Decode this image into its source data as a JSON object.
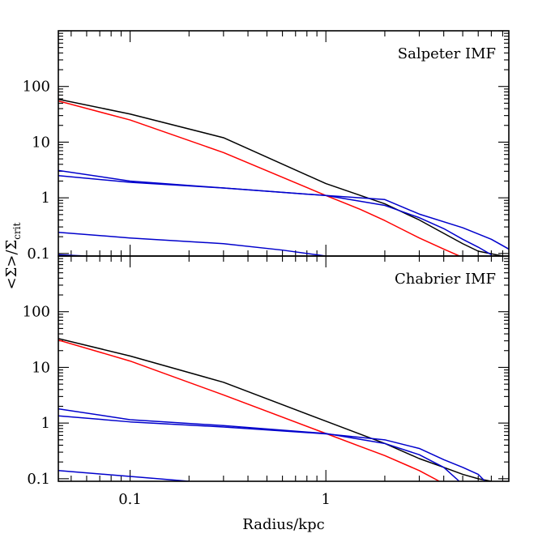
{
  "chart_data": {
    "type": "line",
    "xlabel": "Radius/kpc",
    "ylabel": "<Σ>/Σ",
    "ylabel_sub": "crit",
    "xscale": "log",
    "yscale": "log",
    "xlim": [
      0.043,
      8.6
    ],
    "x_ticks": [
      {
        "value": 0.1,
        "label": "0.1"
      },
      {
        "value": 1,
        "label": "1"
      }
    ],
    "y_ticks": [
      {
        "value": 0.1,
        "label": "0.1"
      },
      {
        "value": 1,
        "label": "1"
      },
      {
        "value": 10,
        "label": "10"
      },
      {
        "value": 100,
        "label": "100"
      }
    ],
    "colors": {
      "total": "#000000",
      "model": "#ff0000",
      "components": "#0000cc"
    },
    "panels": [
      {
        "label": "Salpeter IMF",
        "ylim": [
          0.09,
          1000
        ],
        "series": [
          {
            "color": "#000000",
            "x": [
              0.043,
              0.1,
              0.3,
              1,
              2,
              3,
              4,
              5,
              6,
              8
            ],
            "y": [
              59,
              32,
              12,
              1.8,
              0.78,
              0.4,
              0.23,
              0.15,
              0.11,
              0.09
            ]
          },
          {
            "color": "#ff0000",
            "x": [
              0.043,
              0.1,
              0.3,
              1,
              1.5,
              2,
              3,
              4,
              5
            ],
            "y": [
              55,
              25,
              6.5,
              1.1,
              0.62,
              0.39,
              0.19,
              0.12,
              0.085
            ]
          },
          {
            "color": "#0000cc",
            "x": [
              0.043,
              0.1,
              0.3,
              1,
              2,
              3,
              4,
              5,
              6,
              7
            ],
            "y": [
              3.1,
              2.0,
              1.5,
              1.1,
              0.73,
              0.44,
              0.28,
              0.18,
              0.13,
              0.095
            ]
          },
          {
            "color": "#0000cc",
            "x": [
              0.043,
              0.1,
              0.3,
              1,
              2,
              3,
              5,
              7,
              8.6
            ],
            "y": [
              2.5,
              1.9,
              1.5,
              1.1,
              0.93,
              0.51,
              0.29,
              0.18,
              0.12
            ]
          },
          {
            "color": "#0000cc",
            "x": [
              0.043,
              0.1,
              0.3,
              0.6,
              1.0
            ],
            "y": [
              0.24,
              0.19,
              0.15,
              0.115,
              0.09
            ]
          },
          {
            "color": "#0000cc",
            "x": [
              0.043,
              0.06
            ],
            "y": [
              0.095,
              0.09
            ]
          }
        ]
      },
      {
        "label": "Chabrier IMF",
        "ylim": [
          0.09,
          1000
        ],
        "series": [
          {
            "color": "#000000",
            "x": [
              0.043,
              0.1,
              0.3,
              1,
              2,
              3,
              4,
              5,
              6,
              7
            ],
            "y": [
              33,
              16,
              5.4,
              1.08,
              0.43,
              0.23,
              0.16,
              0.12,
              0.1,
              0.09
            ]
          },
          {
            "color": "#ff0000",
            "x": [
              0.043,
              0.1,
              0.3,
              1,
              1.5,
              2,
              3,
              3.8
            ],
            "y": [
              31,
              13,
              3.2,
              0.65,
              0.38,
              0.26,
              0.14,
              0.09
            ]
          },
          {
            "color": "#0000cc",
            "x": [
              0.043,
              0.1,
              0.3,
              1,
              2,
              3,
              4,
              4.8
            ],
            "y": [
              1.8,
              1.15,
              0.9,
              0.65,
              0.43,
              0.27,
              0.16,
              0.09
            ]
          },
          {
            "color": "#0000cc",
            "x": [
              0.043,
              0.1,
              0.3,
              1,
              2,
              3,
              4,
              5,
              6,
              6.5
            ],
            "y": [
              1.35,
              1.05,
              0.85,
              0.64,
              0.5,
              0.35,
              0.22,
              0.16,
              0.12,
              0.09
            ]
          },
          {
            "color": "#0000cc",
            "x": [
              0.043,
              0.1,
              0.2
            ],
            "y": [
              0.14,
              0.11,
              0.09
            ]
          }
        ]
      }
    ]
  }
}
